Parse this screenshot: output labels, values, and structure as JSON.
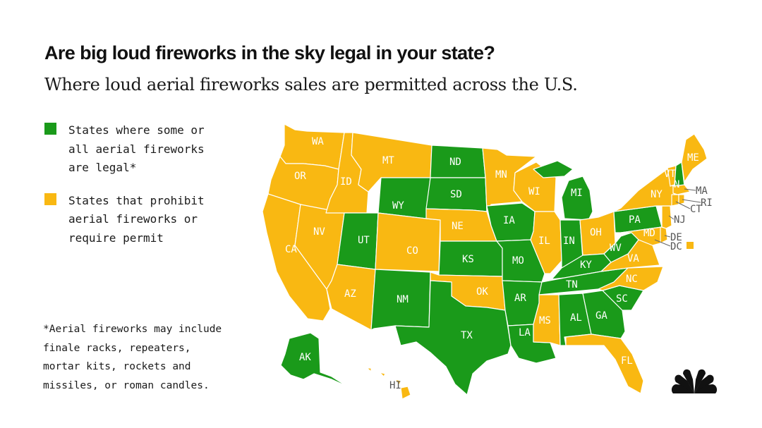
{
  "title": "Are big loud fireworks in the sky legal in your state?",
  "subtitle": "Where loud aerial fireworks sales are permitted across the U.S.",
  "colors": {
    "legal": "#1a9a1a",
    "prohibited": "#f9b812"
  },
  "legend": [
    {
      "key": "legal",
      "label": "States where some or\nall aerial fireworks\nare legal*"
    },
    {
      "key": "prohibited",
      "label": "States that prohibit\naerial fireworks or\nrequire permit"
    }
  ],
  "footnote": "*Aerial fireworks may include\nfinale racks, repeaters,\nmortar kits, rockets and\nmissiles, or roman candles.",
  "states": {
    "WA": "prohibited",
    "OR": "prohibited",
    "CA": "prohibited",
    "ID": "prohibited",
    "NV": "prohibited",
    "MT": "prohibited",
    "WY": "legal",
    "UT": "legal",
    "AZ": "prohibited",
    "CO": "prohibited",
    "NM": "legal",
    "ND": "legal",
    "SD": "legal",
    "NE": "prohibited",
    "KS": "legal",
    "OK": "prohibited",
    "TX": "legal",
    "MN": "prohibited",
    "IA": "legal",
    "MO": "legal",
    "AR": "legal",
    "LA": "legal",
    "WI": "prohibited",
    "IL": "prohibited",
    "MI": "legal",
    "IN": "legal",
    "OH": "prohibited",
    "KY": "legal",
    "TN": "legal",
    "MS": "prohibited",
    "AL": "legal",
    "GA": "legal",
    "FL": "prohibited",
    "SC": "legal",
    "NC": "prohibited",
    "VA": "prohibited",
    "WV": "legal",
    "PA": "legal",
    "NY": "prohibited",
    "VT": "prohibited",
    "NH": "legal",
    "ME": "prohibited",
    "MA": "prohibited",
    "RI": "prohibited",
    "CT": "prohibited",
    "NJ": "prohibited",
    "DE": "prohibited",
    "MD": "prohibited",
    "DC": "prohibited",
    "AK": "legal",
    "HI": "prohibited"
  },
  "callout_labels": [
    "MA",
    "RI",
    "CT",
    "NJ",
    "DE",
    "DC"
  ]
}
